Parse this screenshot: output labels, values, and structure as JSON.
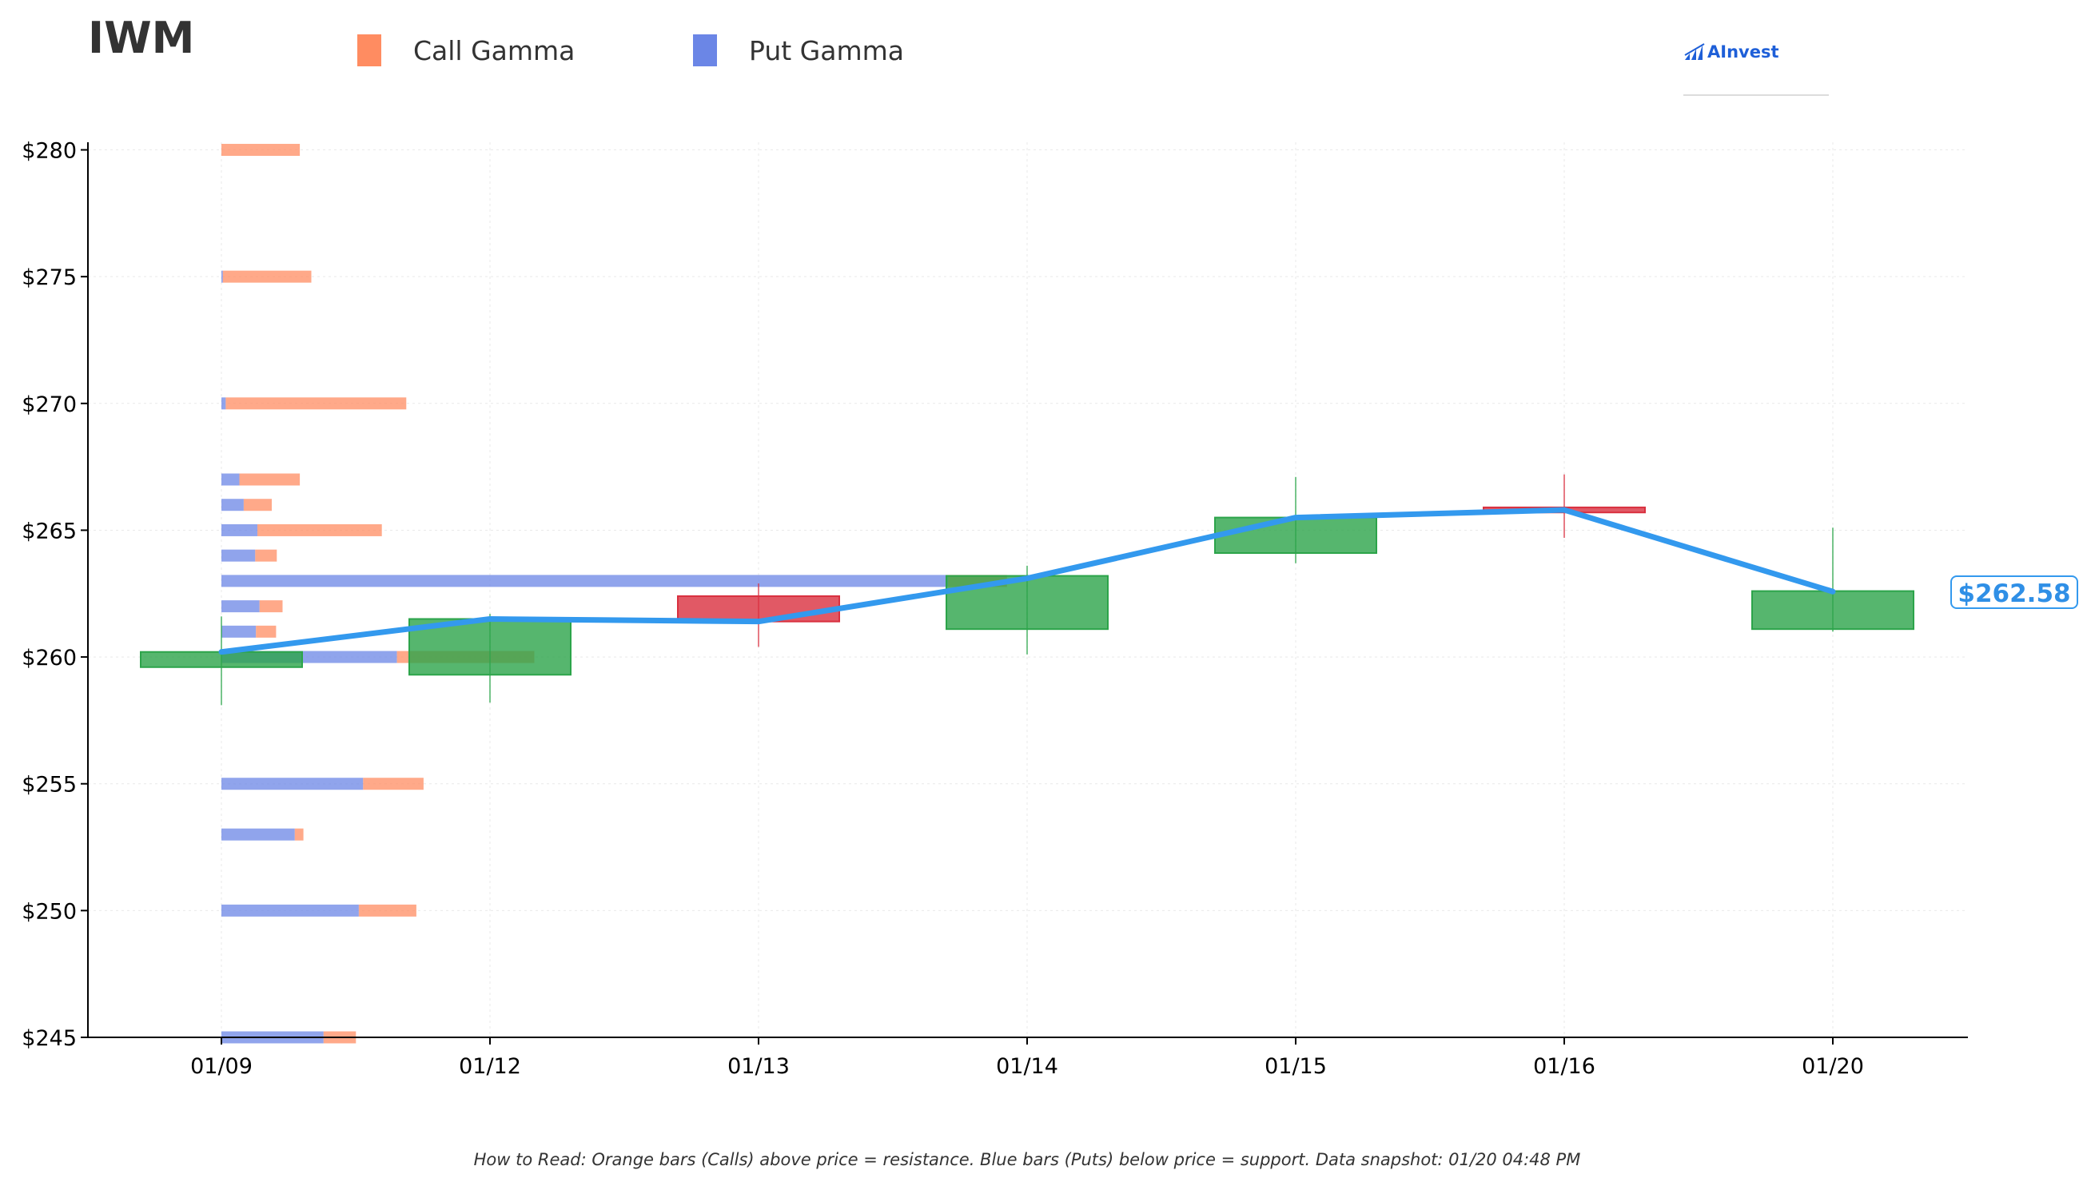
{
  "chart_data": {
    "type": "candlestick",
    "title": "IWM",
    "legend": [
      {
        "name": "Call Gamma",
        "color": "#ff8c61"
      },
      {
        "name": "Put Gamma",
        "color": "#6b86e6"
      }
    ],
    "legend_placement": "top",
    "brand": "AInvest",
    "x_categories": [
      "01/09",
      "01/12",
      "01/13",
      "01/14",
      "01/15",
      "01/16",
      "01/20"
    ],
    "y_ticks": [
      "$280",
      "$275",
      "$270",
      "$265",
      "$260",
      "$255",
      "$250",
      "$245"
    ],
    "ylim": [
      245,
      280.3
    ],
    "grid": true,
    "candles": [
      {
        "date": "01/09",
        "open": 259.6,
        "close": 260.2,
        "high": 261.6,
        "low": 258.1
      },
      {
        "date": "01/12",
        "open": 259.3,
        "close": 261.5,
        "high": 261.7,
        "low": 258.2
      },
      {
        "date": "01/13",
        "open": 262.4,
        "close": 261.4,
        "high": 262.9,
        "low": 260.4
      },
      {
        "date": "01/14",
        "open": 261.1,
        "close": 263.2,
        "high": 263.6,
        "low": 260.1
      },
      {
        "date": "01/15",
        "open": 264.1,
        "close": 265.5,
        "high": 267.1,
        "low": 263.7
      },
      {
        "date": "01/16",
        "open": 265.9,
        "close": 265.7,
        "high": 267.2,
        "low": 264.7
      },
      {
        "date": "01/20",
        "open": 261.1,
        "close": 262.6,
        "high": 265.1,
        "low": 261.0
      }
    ],
    "close_line": {
      "color": "#3399ee",
      "values": [
        260.2,
        261.5,
        261.4,
        263.1,
        265.5,
        265.8,
        262.58
      ]
    },
    "gamma_bars": [
      {
        "strike": 280,
        "put": 0.0,
        "call": 1.09
      },
      {
        "strike": 275,
        "put": 0.02,
        "call": 1.23
      },
      {
        "strike": 270,
        "put": 0.06,
        "call": 2.51
      },
      {
        "strike": 267,
        "put": 0.25,
        "call": 0.84
      },
      {
        "strike": 266,
        "put": 0.31,
        "call": 0.39
      },
      {
        "strike": 265,
        "put": 0.5,
        "call": 1.73
      },
      {
        "strike": 264,
        "put": 0.47,
        "call": 0.3
      },
      {
        "strike": 263,
        "put": 10.1,
        "call": 0.82
      },
      {
        "strike": 262,
        "put": 0.53,
        "call": 0.32
      },
      {
        "strike": 261,
        "put": 0.48,
        "call": 0.28
      },
      {
        "strike": 260,
        "put": 2.44,
        "call": 1.91
      },
      {
        "strike": 255,
        "put": 1.97,
        "call": 0.84
      },
      {
        "strike": 253,
        "put": 1.02,
        "call": 0.12
      },
      {
        "strike": 250,
        "put": 1.91,
        "call": 0.8
      },
      {
        "strike": 245,
        "put": 1.42,
        "call": 0.45
      }
    ],
    "last_price_label": "$262.58"
  },
  "footnote": "How to Read: Orange bars (Calls) above price = resistance. Blue bars (Puts) below price = support. Data snapshot: 01/20 04:48 PM"
}
